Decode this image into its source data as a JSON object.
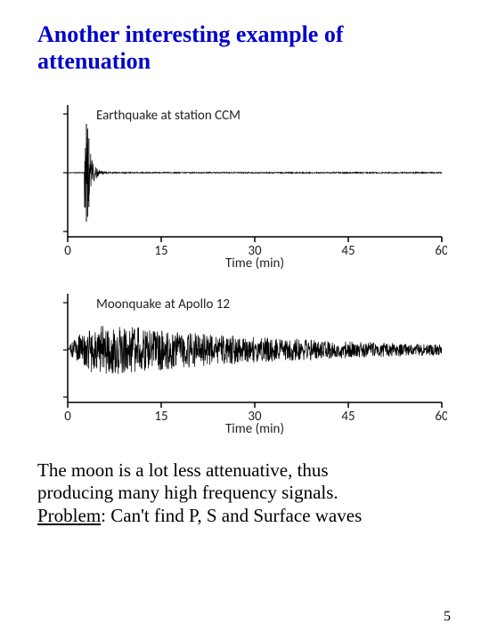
{
  "title": "Another interesting example of attenuation",
  "chart1": {
    "type": "seismogram",
    "label": "Earthquake at station CCM",
    "xlabel": "Time (min)",
    "xlim": [
      0,
      60
    ],
    "xticks": [
      0,
      15,
      30,
      45,
      60
    ],
    "axis_color": "#000000",
    "trace_color": "#000000",
    "background": "#ffffff",
    "label_fontsize": 15,
    "tick_fontsize": 15,
    "envelope_amp": 55,
    "decay": "fast",
    "spike_x": 3
  },
  "chart2": {
    "type": "seismogram",
    "label": "Moonquake at Apollo 12",
    "xlabel": "Time (min)",
    "xlim": [
      0,
      60
    ],
    "xticks": [
      0,
      15,
      30,
      45,
      60
    ],
    "axis_color": "#000000",
    "trace_color": "#000000",
    "background": "#ffffff",
    "label_fontsize": 15,
    "tick_fontsize": 15,
    "envelope_amp": 35,
    "decay": "slow"
  },
  "body": {
    "line1": "The moon is a lot less attenuative, thus",
    "line2": "producing many high frequency signals.",
    "problem_label": "Problem",
    "problem_rest": ":  Can't find P, S and Surface waves"
  },
  "slide_number": "5"
}
